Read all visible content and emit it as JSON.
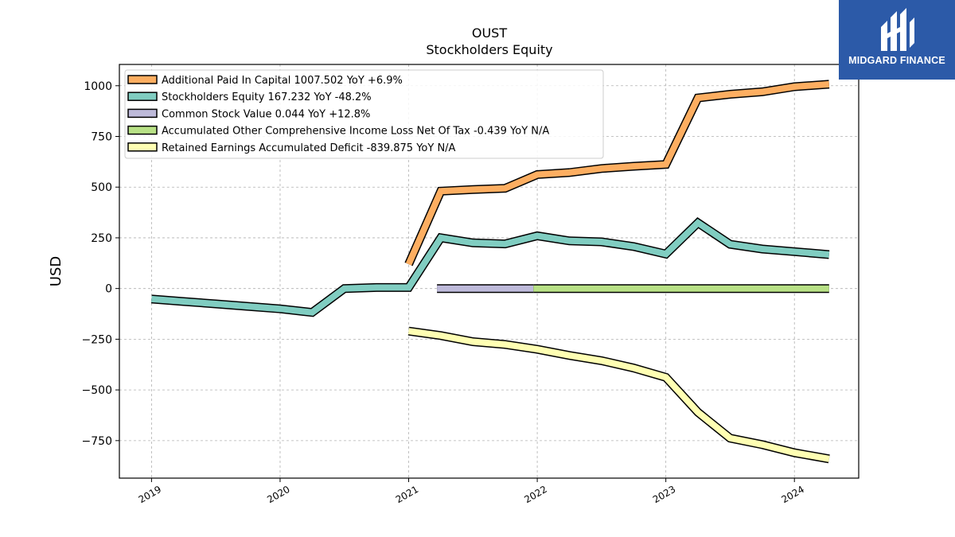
{
  "chart_data": {
    "type": "line",
    "title": "OUST",
    "subtitle": "Stockholders  Equity",
    "ylabel": "USD",
    "xlabel": "",
    "xlim": [
      2018.75,
      2024.5
    ],
    "ylim": [
      -935,
      1105
    ],
    "yticks": [
      1000,
      750,
      500,
      250,
      0,
      -250,
      -500,
      -750
    ],
    "ytick_labels": [
      "1000",
      "750",
      "500",
      "250",
      "0",
      "−250",
      "−500",
      "−750"
    ],
    "xticks": [
      2019,
      2020,
      2021,
      2022,
      2023,
      2024
    ],
    "xtick_labels": [
      "2019",
      "2020",
      "2021",
      "2022",
      "2023",
      "2024"
    ],
    "grid": true,
    "legend_position": "top-left",
    "series": [
      {
        "name": "Additional Paid In Capital  1007.502 YoY +6.9%",
        "color": "#fdae61",
        "x": [
          2021.0,
          2021.25,
          2021.5,
          2021.75,
          2022.0,
          2022.25,
          2022.5,
          2022.75,
          2023.0,
          2023.25,
          2023.5,
          2023.75,
          2024.0,
          2024.27
        ],
        "y": [
          120,
          480,
          488,
          494,
          562,
          572,
          592,
          603,
          612,
          940,
          958,
          970,
          995,
          1007.5
        ]
      },
      {
        "name": "Stockholders Equity  167.232 YoY -48.2%",
        "color": "#80cdc1",
        "x": [
          2019.0,
          2019.25,
          2019.5,
          2019.75,
          2020.0,
          2020.25,
          2020.5,
          2020.75,
          2021.0,
          2021.25,
          2021.5,
          2021.75,
          2022.0,
          2022.25,
          2022.5,
          2022.75,
          2023.0,
          2023.25,
          2023.5,
          2023.75,
          2024.0,
          2024.27
        ],
        "y": [
          -52,
          -64,
          -76,
          -88,
          -100,
          -118,
          0,
          5,
          5,
          250,
          225,
          220,
          260,
          235,
          230,
          207,
          170,
          324,
          218,
          195,
          182,
          167.2
        ]
      },
      {
        "name": "Common Stock Value  0.044 YoY +12.8%",
        "color": "#bebada",
        "x": [
          2021.22,
          2021.5,
          2021.75,
          2021.97
        ],
        "y": [
          0,
          0,
          0,
          0
        ]
      },
      {
        "name": "Accumulated Other Comprehensive Income Loss Net Of Tax  -0.439 YoY N/A",
        "color": "#b8e186",
        "x": [
          2021.97,
          2022.25,
          2022.5,
          2022.75,
          2023.0,
          2023.25,
          2023.5,
          2023.75,
          2024.0,
          2024.27
        ],
        "y": [
          0,
          0,
          0,
          0,
          0,
          0,
          0,
          0,
          0,
          -0.4
        ]
      },
      {
        "name": "Retained Earnings Accumulated Deficit  -839.875 YoY N/A",
        "color": "#ffffb3",
        "x": [
          2021.0,
          2021.25,
          2021.5,
          2021.75,
          2022.0,
          2022.25,
          2022.5,
          2022.75,
          2023.0,
          2023.25,
          2023.5,
          2023.75,
          2024.0,
          2024.27
        ],
        "y": [
          -210,
          -232,
          -262,
          -276,
          -300,
          -330,
          -356,
          -392,
          -438,
          -610,
          -738,
          -770,
          -810,
          -839.9
        ]
      }
    ]
  },
  "logo": {
    "text": "MIDGARD FINANCE",
    "color": "#2c5aa8"
  }
}
